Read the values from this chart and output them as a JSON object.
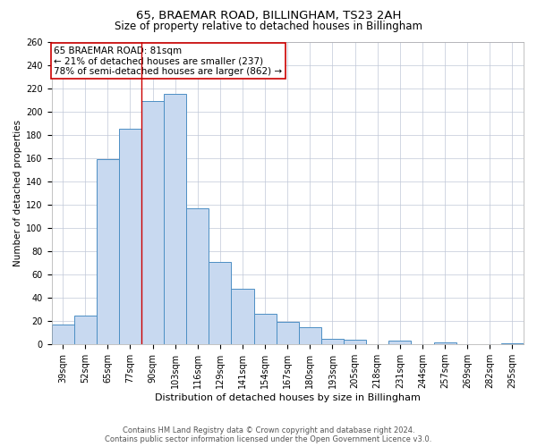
{
  "title": "65, BRAEMAR ROAD, BILLINGHAM, TS23 2AH",
  "subtitle": "Size of property relative to detached houses in Billingham",
  "xlabel": "Distribution of detached houses by size in Billingham",
  "ylabel": "Number of detached properties",
  "bar_labels": [
    "39sqm",
    "52sqm",
    "65sqm",
    "77sqm",
    "90sqm",
    "103sqm",
    "116sqm",
    "129sqm",
    "141sqm",
    "154sqm",
    "167sqm",
    "180sqm",
    "193sqm",
    "205sqm",
    "218sqm",
    "231sqm",
    "244sqm",
    "257sqm",
    "269sqm",
    "282sqm",
    "295sqm"
  ],
  "bar_values": [
    17,
    25,
    159,
    185,
    209,
    215,
    117,
    71,
    48,
    26,
    19,
    15,
    5,
    4,
    0,
    3,
    0,
    2,
    0,
    0,
    1
  ],
  "bar_color": "#c8d9f0",
  "bar_edge_color": "#4d8fc4",
  "vline_x": 3.5,
  "vline_color": "#cc0000",
  "annotation_line1": "65 BRAEMAR ROAD: 81sqm",
  "annotation_line2": "← 21% of detached houses are smaller (237)",
  "annotation_line3": "78% of semi-detached houses are larger (862) →",
  "annotation_box_color": "#ffffff",
  "annotation_box_edge_color": "#cc0000",
  "ylim": [
    0,
    260
  ],
  "yticks": [
    0,
    20,
    40,
    60,
    80,
    100,
    120,
    140,
    160,
    180,
    200,
    220,
    240,
    260
  ],
  "footer_line1": "Contains HM Land Registry data © Crown copyright and database right 2024.",
  "footer_line2": "Contains public sector information licensed under the Open Government Licence v3.0.",
  "background_color": "#ffffff",
  "grid_color": "#c0c8d8",
  "title_fontsize": 9.5,
  "subtitle_fontsize": 8.5,
  "xlabel_fontsize": 8,
  "ylabel_fontsize": 7.5,
  "tick_fontsize": 7,
  "annotation_fontsize": 7.5,
  "footer_fontsize": 6
}
